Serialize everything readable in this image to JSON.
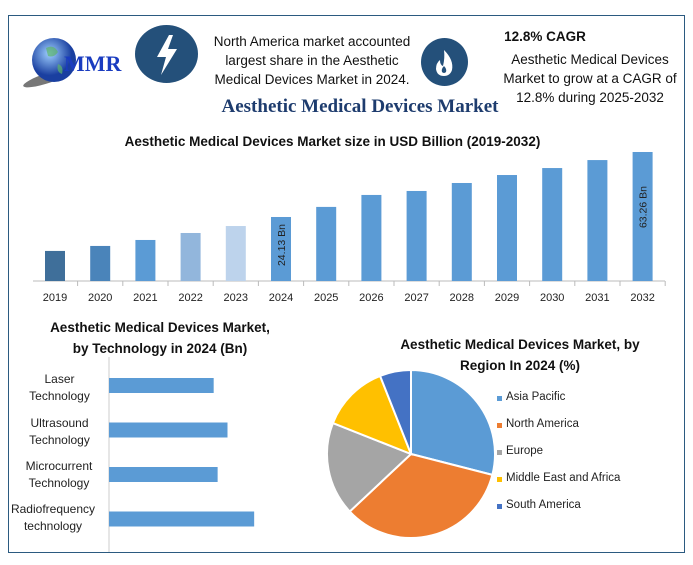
{
  "header": {
    "logo_text": "MMR",
    "fact1": "North America market accounted largest share in the Aesthetic Medical Devices Market in 2024.",
    "cagr_title": "12.8% CAGR",
    "fact2": "Aesthetic Medical Devices Market to grow at a CAGR of 12.8% during 2025-2032",
    "main_title": "Aesthetic Medical Devices Market",
    "icons": [
      "lightning-icon",
      "flame-icon"
    ],
    "icon_color": "#24507a"
  },
  "chart_data": [
    {
      "type": "bar",
      "title": "Aesthetic Medical Devices Market size in USD Billion (2019-2032)",
      "categories": [
        "2019",
        "2020",
        "2021",
        "2022",
        "2023",
        "2024",
        "2025",
        "2026",
        "2027",
        "2028",
        "2029",
        "2030",
        "2031",
        "2032"
      ],
      "values": [
        3.7,
        6.7,
        10.3,
        14.5,
        18.7,
        24.13,
        30.2,
        37.4,
        39.8,
        44.6,
        49.4,
        53.6,
        58.4,
        63.26
      ],
      "data_labels": {
        "2024": "24.13 Bn",
        "2032": "63.26 Bn"
      },
      "colors": [
        "#3f6f9a",
        "#4a84ba",
        "#5b9bd5",
        "#92b6dc",
        "#bdd3ec",
        "#5b9bd5",
        "#5b9bd5",
        "#5b9bd5",
        "#5b9bd5",
        "#5b9bd5",
        "#5b9bd5",
        "#5b9bd5",
        "#5b9bd5",
        "#5b9bd5"
      ],
      "grid": false
    },
    {
      "type": "bar",
      "orientation": "horizontal",
      "title": "Aesthetic Medical Devices Market, by Technology in 2024 (Bn)",
      "categories": [
        "Laser Technology",
        "Ultrasound Technology",
        "Microcurrent Technology",
        "Radiofrequency technology"
      ],
      "values": [
        5.3,
        6.0,
        5.5,
        7.35
      ],
      "color": "#5b9bd5"
    },
    {
      "type": "pie",
      "title": "Aesthetic Medical Devices Market, by Region In 2024 (%)",
      "labels": [
        "Asia Pacific",
        "North America",
        "Europe",
        "Middle East and Africa",
        "South America"
      ],
      "values": [
        29,
        34,
        18,
        13,
        6
      ],
      "colors": [
        "#5b9bd5",
        "#ed7d31",
        "#a5a5a5",
        "#ffc000",
        "#4472c4"
      ],
      "legend": "right"
    }
  ]
}
